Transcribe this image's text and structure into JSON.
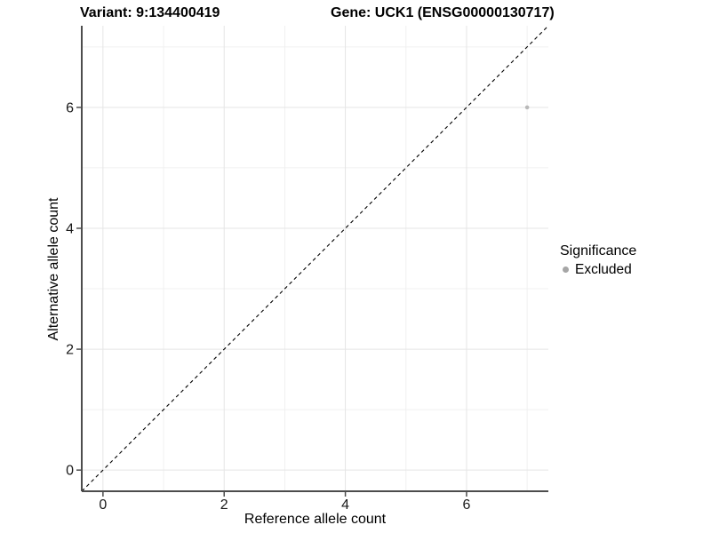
{
  "figure": {
    "title_left": "Variant: 9:134400419",
    "title_right": "Gene: UCK1 (ENSG00000130717)"
  },
  "axes": {
    "x": {
      "label": "Reference allele count",
      "tick_labels": [
        "0",
        "2",
        "4",
        "6"
      ]
    },
    "y": {
      "label": "Alternative allele count",
      "tick_labels": [
        "0",
        "2",
        "4",
        "6"
      ]
    }
  },
  "legend": {
    "title": "Significance",
    "items": [
      {
        "label": "Excluded",
        "color": "#a6a6a6",
        "marker": "circle-icon"
      }
    ]
  },
  "chart_data": {
    "type": "scatter",
    "title": "Variant: 9:134400419 / Gene: UCK1 (ENSG00000130717)",
    "xlabel": "Reference allele count",
    "ylabel": "Alternative allele count",
    "xlim": [
      -0.35,
      7.35
    ],
    "ylim": [
      -0.35,
      7.35
    ],
    "x_major_ticks": [
      0,
      2,
      4,
      6
    ],
    "x_minor_ticks": [
      1,
      3,
      5,
      7
    ],
    "y_major_ticks": [
      0,
      2,
      4,
      6
    ],
    "y_minor_ticks": [
      1,
      3,
      5,
      7
    ],
    "grid": "on",
    "legend_position": "right",
    "series": [
      {
        "name": "Excluded",
        "color": "#b9b9b9",
        "marker_size": 2.3,
        "points": [
          {
            "x": 7,
            "y": 6
          }
        ]
      }
    ],
    "reference_line": {
      "style": "dashed",
      "color": "#000000",
      "from": [
        -0.35,
        -0.35
      ],
      "to": [
        7.35,
        7.35
      ],
      "description": "identity line y = x"
    }
  },
  "colors": {
    "background": "#ffffff",
    "grid_major": "#e5e5e5",
    "grid_minor": "#f0f0f0",
    "axis_line": "#4d4d4d",
    "tick_label": "#1a1a1a"
  }
}
